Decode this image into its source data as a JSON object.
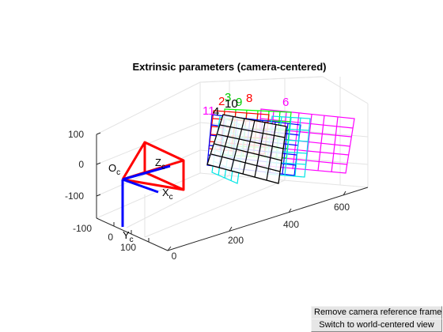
{
  "figure": {
    "title": "Extrinsic parameters (camera-centered)",
    "axes": {
      "x_ticks": [
        "-100",
        "0",
        "100"
      ],
      "y_ticks": [
        "0",
        "200",
        "400",
        "600"
      ],
      "z_ticks": [
        "100",
        "0",
        "-100"
      ]
    },
    "camera": {
      "origin_label": "O",
      "origin_sub": "c",
      "x_label": "X",
      "x_sub": "c",
      "y_label": "Y",
      "y_sub": "c",
      "z_label": "Z",
      "z_sub": "c",
      "frustum_color": "#ff0000",
      "axis_color": "#0000ff"
    },
    "board_labels": [
      {
        "text": "2",
        "color": "#ff0000"
      },
      {
        "text": "3",
        "color": "#00cc00"
      },
      {
        "text": "8",
        "color": "#ff0000"
      },
      {
        "text": "9",
        "color": "#00cc00"
      },
      {
        "text": "10",
        "color": "#000000"
      },
      {
        "text": "6",
        "color": "#ff00ff"
      },
      {
        "text": "11",
        "color": "#ff00ff"
      },
      {
        "text": "4",
        "color": "#000000"
      }
    ],
    "board_colors": {
      "magenta": "#ff00ff",
      "green": "#00ff00",
      "cyan": "#00e5e5",
      "blue": "#0000ff",
      "red": "#ff0000",
      "black": "#000000"
    }
  },
  "buttons": {
    "remove_label": "Remove camera reference frame",
    "switch_label": "Switch to world-centered view"
  }
}
